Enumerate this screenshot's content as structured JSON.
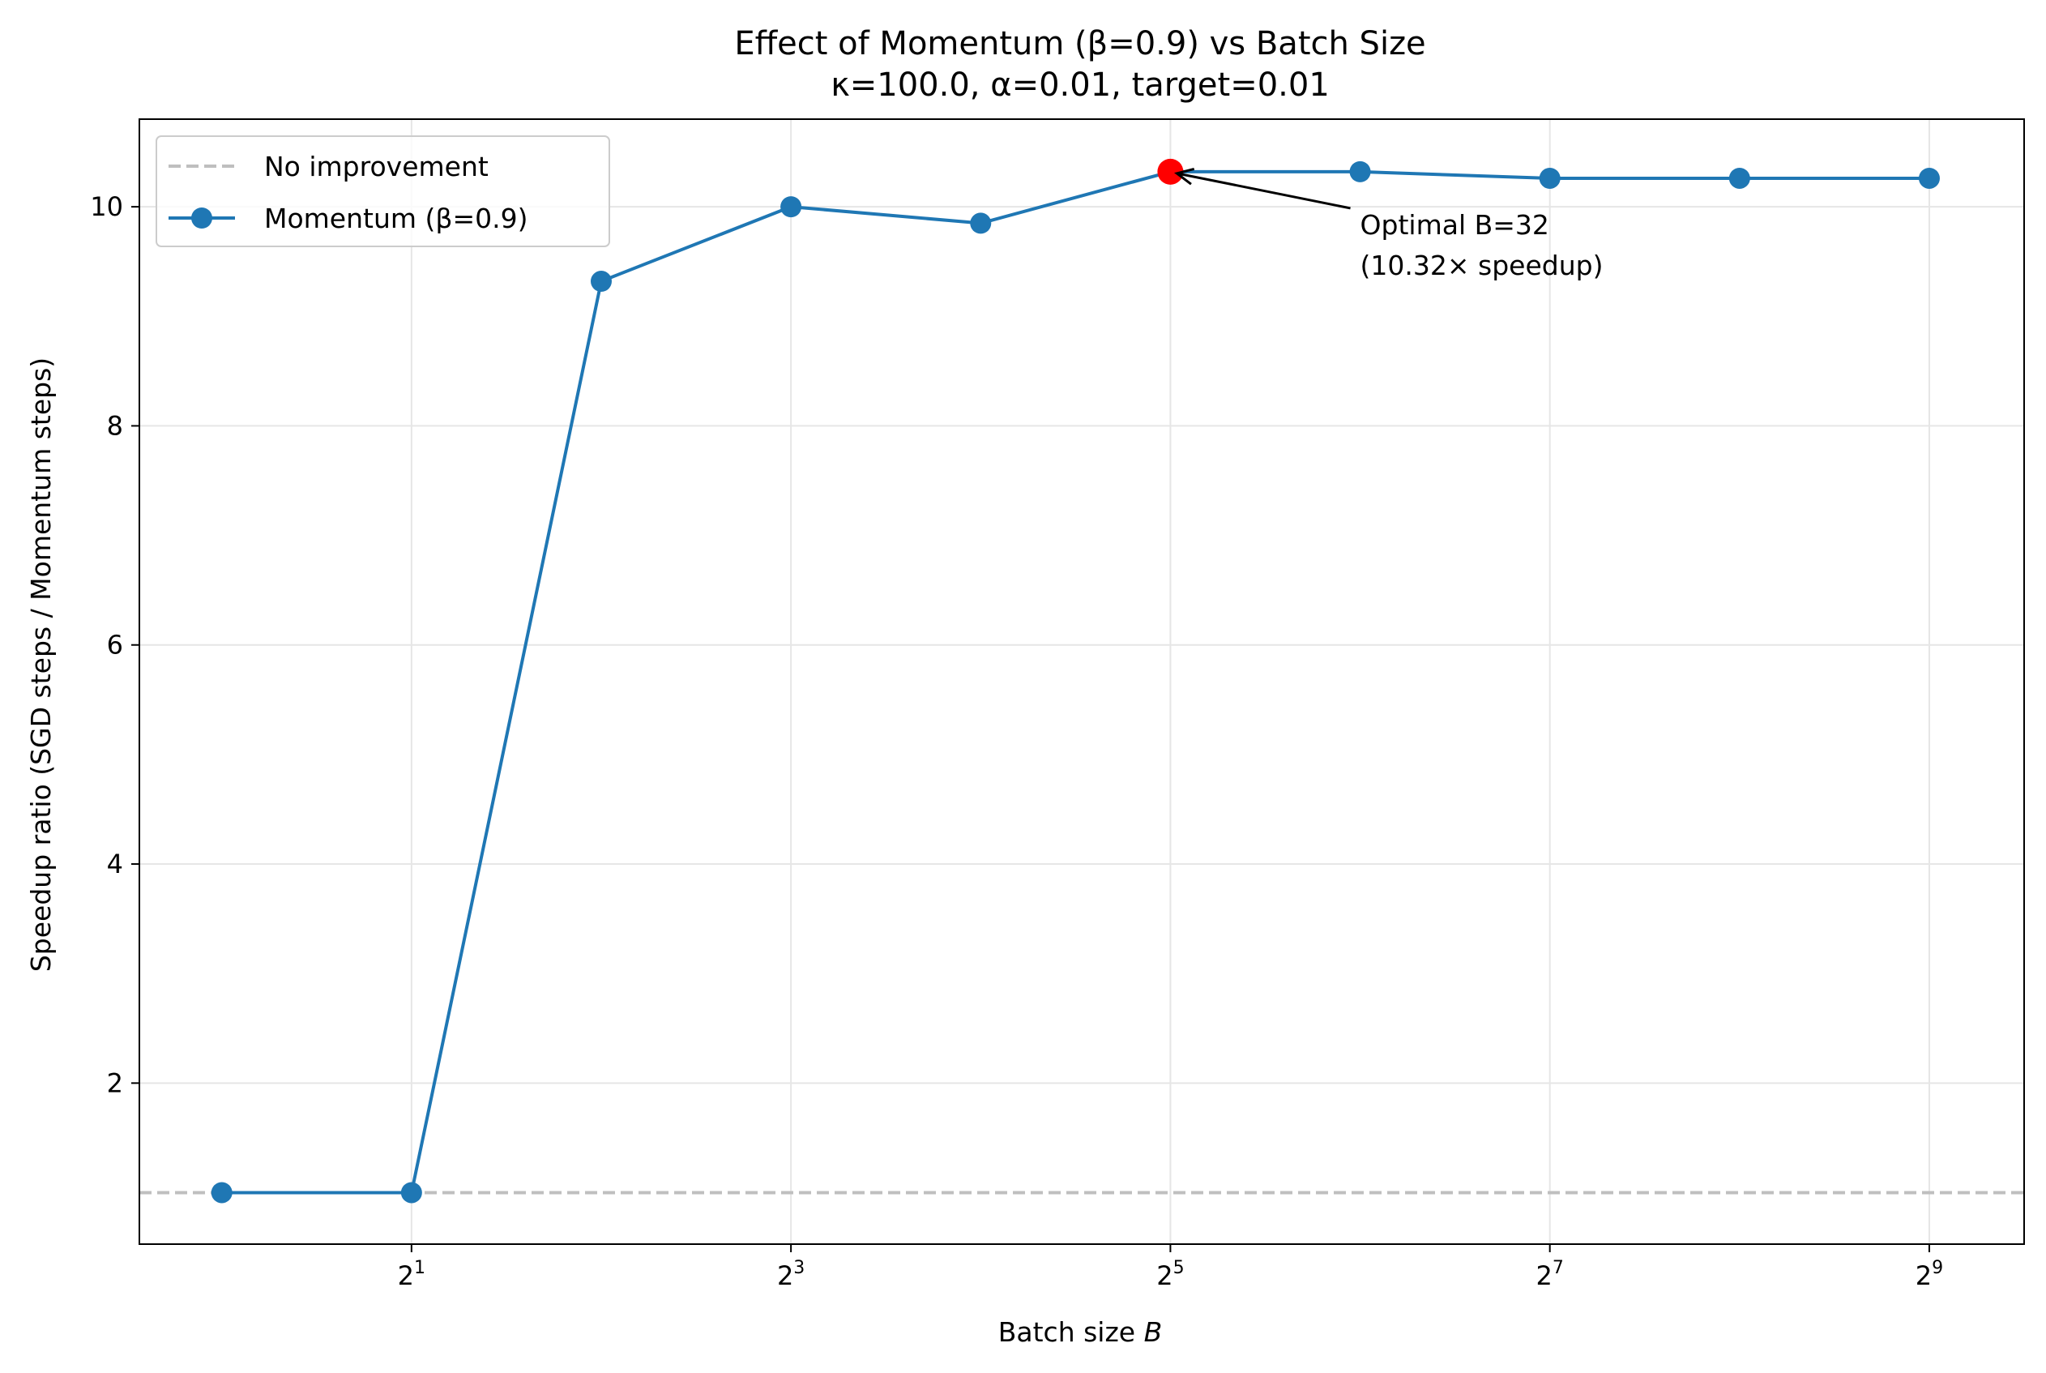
{
  "chart_data": {
    "type": "line",
    "title": "Effect of Momentum (β=0.9) vs Batch Size",
    "subtitle": "κ=100.0, α=0.01, target=0.01",
    "xlabel": "Batch size",
    "xlabel_var": "B",
    "ylabel": "Speedup ratio (SGD steps / Momentum steps)",
    "x_scale": "log2",
    "xlim": [
      0.74,
      724
    ],
    "ylim": [
      0.53,
      10.8
    ],
    "grid": true,
    "legend_position": "top-left",
    "x_ticks": [
      {
        "value": 2,
        "base": "2",
        "exp": "1"
      },
      {
        "value": 8,
        "base": "2",
        "exp": "3"
      },
      {
        "value": 32,
        "base": "2",
        "exp": "5"
      },
      {
        "value": 128,
        "base": "2",
        "exp": "7"
      },
      {
        "value": 512,
        "base": "2",
        "exp": "9"
      }
    ],
    "y_ticks": [
      {
        "value": 2,
        "label": "2"
      },
      {
        "value": 4,
        "label": "4"
      },
      {
        "value": 6,
        "label": "6"
      },
      {
        "value": 8,
        "label": "8"
      },
      {
        "value": 10,
        "label": "10"
      }
    ],
    "series": [
      {
        "name": "Momentum (β=0.9)",
        "color": "#1f77b4",
        "x": [
          1,
          2,
          4,
          8,
          16,
          32,
          64,
          128,
          256,
          512
        ],
        "values": [
          1.0,
          1.0,
          9.32,
          10.0,
          9.85,
          10.32,
          10.32,
          10.26,
          10.26,
          10.26
        ]
      }
    ],
    "reference_line": {
      "name": "No improvement",
      "y": 1.0,
      "color": "#bfbfbf"
    },
    "highlight": {
      "x": 32,
      "y": 10.32,
      "color": "#ff0000"
    },
    "annotation": {
      "lines": [
        "Optimal B=32",
        "(10.32× speedup)"
      ],
      "text_x": 64,
      "text_y": 9.75,
      "arrow_to_x": 32,
      "arrow_to_y": 10.32
    }
  }
}
